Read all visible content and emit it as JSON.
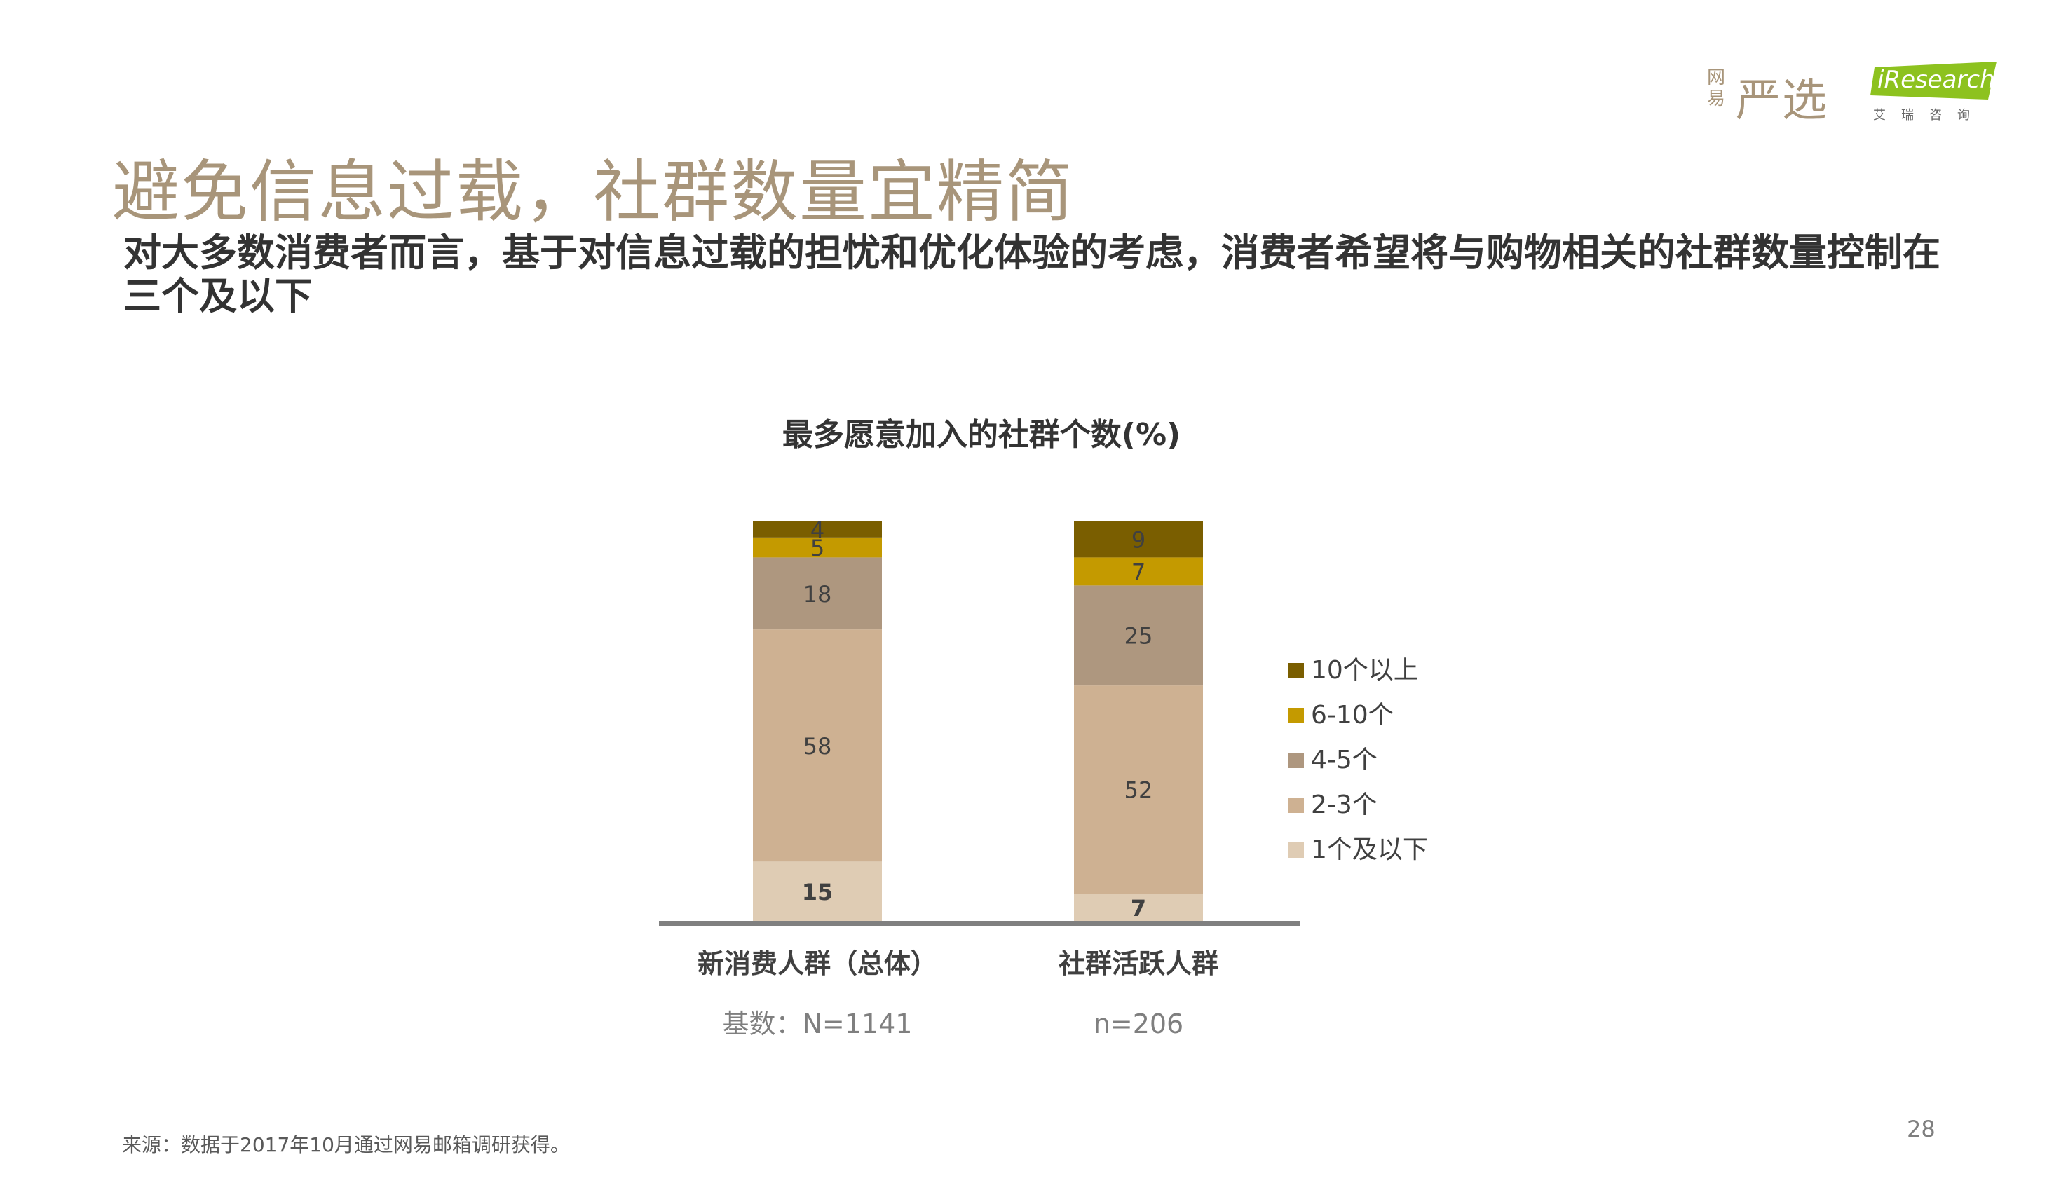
{
  "header": {
    "logo_wangyi": "网易",
    "logo_yanxuan": "严选",
    "logo_iresearch": "iResearch",
    "logo_iresearch_cn": "艾瑞咨询"
  },
  "title": "避免信息过载，社群数量宜精简",
  "subtitle": "对大多数消费者而言，基于对信息过载的担忧和优化体验的考虑，消费者希望将与购物相关的社群数量控制在三个及以下",
  "chart_data": {
    "type": "bar",
    "stacked": true,
    "title": "最多愿意加入的社群个数(%)",
    "categories": [
      "新消费人群（总体）",
      "社群活跃人群"
    ],
    "base_labels": [
      "基数：N=1141",
      "n=206"
    ],
    "series": [
      {
        "name": "1个及以下",
        "values": [
          15,
          7
        ],
        "color": "#dfccb4"
      },
      {
        "name": "2-3个",
        "values": [
          58,
          52
        ],
        "color": "#ceb192"
      },
      {
        "name": "4-5个",
        "values": [
          18,
          25
        ],
        "color": "#ae977f"
      },
      {
        "name": "6-10个",
        "values": [
          5,
          7
        ],
        "color": "#c49a00"
      },
      {
        "name": "10个以上",
        "values": [
          4,
          9
        ],
        "color": "#7a5e00"
      }
    ],
    "ylim": [
      0,
      100
    ],
    "legend_position": "right",
    "grid": false
  },
  "footer": {
    "source": "来源：数据于2017年10月通过网易邮箱调研获得。",
    "page_number": "28"
  }
}
